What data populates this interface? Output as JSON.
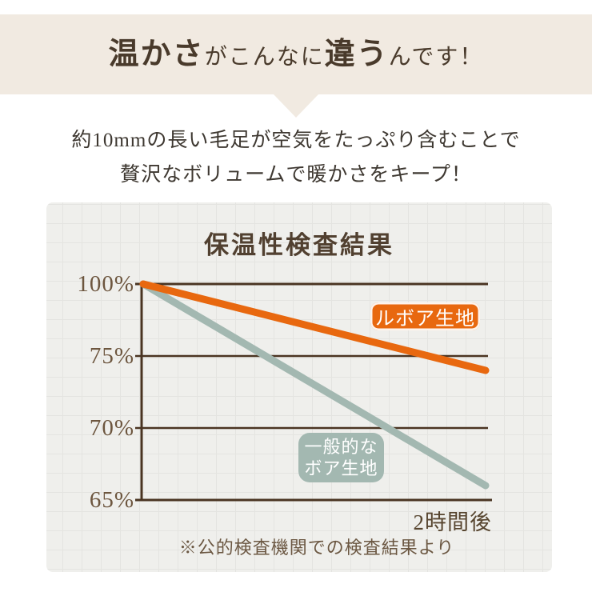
{
  "header": {
    "title_segments": [
      {
        "text": "温かさ"
      },
      {
        "text": "がこんなに"
      },
      {
        "text": "違う"
      },
      {
        "text": "んです！"
      }
    ]
  },
  "intro": {
    "line1": "約10mmの長い毛足が空気をたっぷり含むことで",
    "line2": "贅沢なボリュームで暖かさをキープ！"
  },
  "colors": {
    "banner_bg": "#f1eae1",
    "axis": "#4a3422",
    "orange": "#e8680f",
    "sage": "#a3b8b1"
  },
  "chart_data": {
    "type": "line",
    "title": "保温性検査結果",
    "x_end_label": "2時間後",
    "note": "※公的検査機関での検査結果より",
    "yticks": [
      {
        "label": "100%",
        "value": 100
      },
      {
        "label": "75%",
        "value": 75
      },
      {
        "label": "70%",
        "value": 70
      },
      {
        "label": "65%",
        "value": 65
      }
    ],
    "axis_layout": "ticks evenly spaced (non-linear scale), grid panel background, no legend box",
    "series": [
      {
        "name_lines": [
          "ルボア生地"
        ],
        "color": "#e8680f",
        "start_pct": 100,
        "end_pct": 74
      },
      {
        "name_lines": [
          "一般的な",
          "ボア生地"
        ],
        "color": "#a3b8b1",
        "start_pct": 100,
        "end_pct": 66
      }
    ]
  }
}
